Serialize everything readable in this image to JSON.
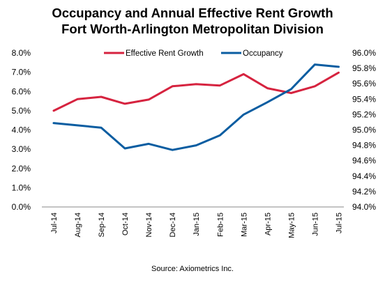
{
  "chart_data": {
    "type": "line",
    "title": "Occupancy and Annual Effective Rent Growth",
    "subtitle": "Fort Worth-Arlington Metropolitan Division",
    "source": "Source: Axiometrics Inc.",
    "categories": [
      "Jul-14",
      "Aug-14",
      "Sep-14",
      "Oct-14",
      "Nov-14",
      "Dec-14",
      "Jan-15",
      "Feb-15",
      "Mar-15",
      "Apr-15",
      "May-15",
      "Jun-15",
      "Jul-15"
    ],
    "left_axis": {
      "ylim": [
        0,
        8
      ],
      "ticks": [
        "0.0%",
        "1.0%",
        "2.0%",
        "3.0%",
        "4.0%",
        "5.0%",
        "6.0%",
        "7.0%",
        "8.0%"
      ]
    },
    "right_axis": {
      "ylim": [
        94.0,
        96.0
      ],
      "ticks": [
        "94.0%",
        "94.2%",
        "94.4%",
        "94.6%",
        "94.8%",
        "95.0%",
        "95.2%",
        "95.4%",
        "95.6%",
        "95.8%",
        "96.0%"
      ]
    },
    "series": [
      {
        "name": "Effective Rent Growth",
        "axis": "left",
        "color": "#d6233f",
        "values": [
          5.0,
          5.6,
          5.72,
          5.36,
          5.58,
          6.27,
          6.38,
          6.31,
          6.9,
          6.17,
          5.92,
          6.27,
          6.98
        ]
      },
      {
        "name": "Occupancy",
        "axis": "right",
        "color": "#0a5da1",
        "values": [
          95.09,
          95.06,
          95.03,
          94.76,
          94.82,
          94.74,
          94.8,
          94.93,
          95.2,
          95.36,
          95.53,
          95.85,
          95.82
        ]
      }
    ],
    "legend_position": "top",
    "grid": false
  }
}
